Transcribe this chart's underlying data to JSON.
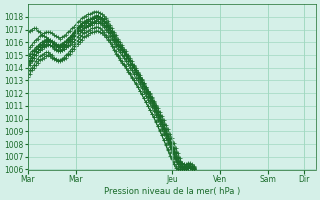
{
  "title": "",
  "xlabel": "Pression niveau de la mer( hPa )",
  "ylabel": "",
  "xlim": [
    0,
    144
  ],
  "ylim": [
    1006,
    1019
  ],
  "yticks": [
    1006,
    1007,
    1008,
    1009,
    1010,
    1011,
    1012,
    1013,
    1014,
    1015,
    1016,
    1017,
    1018
  ],
  "xtick_labels": [
    "Mar",
    "Mar",
    "Jeu",
    "Ven",
    "Sam",
    "Dir"
  ],
  "xtick_positions": [
    0,
    24,
    72,
    96,
    120,
    138
  ],
  "bg_color": "#d5f0e8",
  "line_color": "#1a6b2a",
  "grid_color": "#a0d8c0",
  "series": [
    [
      1014.0,
      1014.2,
      1014.5,
      1014.8,
      1015.0,
      1015.2,
      1015.4,
      1015.6,
      1015.7,
      1015.8,
      1015.9,
      1015.8,
      1015.7,
      1015.5,
      1015.4,
      1015.3,
      1015.3,
      1015.4,
      1015.5,
      1015.6,
      1015.7,
      1015.8,
      1015.9,
      1016.0,
      1016.2,
      1016.4,
      1016.6,
      1016.8,
      1017.0,
      1017.2,
      1017.3,
      1017.4,
      1017.5,
      1017.6,
      1017.7,
      1017.8,
      1017.8,
      1017.7,
      1017.5,
      1017.3,
      1017.0,
      1016.8,
      1016.5,
      1016.2,
      1016.0,
      1015.8,
      1015.6,
      1015.4,
      1015.2,
      1015.0,
      1014.8,
      1014.5,
      1014.2,
      1014.0,
      1013.8,
      1013.5,
      1013.3,
      1013.0,
      1012.8,
      1012.5,
      1012.2,
      1012.0,
      1011.7,
      1011.4,
      1011.1,
      1010.8,
      1010.5,
      1010.2,
      1009.9,
      1009.5,
      1009.2,
      1008.8,
      1008.5,
      1008.1,
      1007.7,
      1007.3,
      1006.9,
      1006.5,
      1006.4,
      1006.3,
      1006.2,
      1006.3,
      1006.2,
      1006.2
    ],
    [
      1014.2,
      1014.5,
      1014.8,
      1015.0,
      1015.3,
      1015.5,
      1015.6,
      1015.8,
      1015.9,
      1016.0,
      1016.1,
      1016.0,
      1016.0,
      1015.8,
      1015.7,
      1015.6,
      1015.5,
      1015.6,
      1015.7,
      1015.8,
      1016.0,
      1016.2,
      1016.4,
      1016.6,
      1016.8,
      1017.0,
      1017.2,
      1017.4,
      1017.5,
      1017.6,
      1017.7,
      1017.7,
      1017.8,
      1017.9,
      1018.0,
      1018.1,
      1018.0,
      1017.9,
      1017.7,
      1017.5,
      1017.2,
      1017.0,
      1016.7,
      1016.4,
      1016.1,
      1015.8,
      1015.6,
      1015.4,
      1015.2,
      1015.0,
      1014.8,
      1014.5,
      1014.2,
      1014.0,
      1013.7,
      1013.4,
      1013.1,
      1012.8,
      1012.5,
      1012.2,
      1011.9,
      1011.6,
      1011.3,
      1011.0,
      1010.6,
      1010.3,
      1010.0,
      1009.6,
      1009.2,
      1008.8,
      1008.4,
      1008.0,
      1007.6,
      1007.2,
      1006.8,
      1006.4,
      1006.2,
      1006.0,
      1006.0,
      1006.0,
      1006.1,
      1006.2,
      1006.1,
      1006.0
    ],
    [
      1014.5,
      1014.6,
      1014.8,
      1015.1,
      1015.3,
      1015.5,
      1015.7,
      1015.8,
      1015.9,
      1016.0,
      1016.1,
      1016.1,
      1016.0,
      1015.9,
      1015.8,
      1015.7,
      1015.7,
      1015.8,
      1015.9,
      1016.0,
      1016.2,
      1016.4,
      1016.5,
      1016.7,
      1016.9,
      1017.1,
      1017.3,
      1017.5,
      1017.6,
      1017.7,
      1017.8,
      1017.8,
      1017.9,
      1018.0,
      1018.1,
      1018.1,
      1018.0,
      1017.9,
      1017.8,
      1017.6,
      1017.3,
      1017.1,
      1016.8,
      1016.5,
      1016.2,
      1016.0,
      1015.7,
      1015.5,
      1015.3,
      1015.0,
      1014.8,
      1014.5,
      1014.2,
      1014.0,
      1013.8,
      1013.5,
      1013.2,
      1012.9,
      1012.6,
      1012.3,
      1012.0,
      1011.7,
      1011.4,
      1011.1,
      1010.8,
      1010.4,
      1010.1,
      1009.7,
      1009.3,
      1009.0,
      1008.6,
      1008.2,
      1007.8,
      1007.4,
      1007.0,
      1006.7,
      1006.5,
      1006.3,
      1006.2,
      1006.2,
      1006.3,
      1006.3,
      1006.2,
      1006.1
    ],
    [
      1013.5,
      1013.8,
      1014.0,
      1014.2,
      1014.5,
      1014.7,
      1014.9,
      1015.0,
      1015.1,
      1015.2,
      1015.2,
      1015.1,
      1015.0,
      1014.8,
      1014.7,
      1014.6,
      1014.6,
      1014.7,
      1014.8,
      1015.0,
      1015.1,
      1015.3,
      1015.5,
      1015.7,
      1015.9,
      1016.1,
      1016.3,
      1016.5,
      1016.7,
      1016.8,
      1016.9,
      1017.0,
      1017.1,
      1017.1,
      1017.2,
      1017.2,
      1017.1,
      1017.0,
      1016.8,
      1016.6,
      1016.4,
      1016.2,
      1015.9,
      1015.6,
      1015.3,
      1015.0,
      1014.8,
      1014.5,
      1014.3,
      1014.1,
      1013.8,
      1013.6,
      1013.3,
      1013.0,
      1012.8,
      1012.5,
      1012.2,
      1011.9,
      1011.6,
      1011.3,
      1011.0,
      1010.7,
      1010.4,
      1010.1,
      1009.7,
      1009.4,
      1009.0,
      1008.7,
      1008.3,
      1007.9,
      1007.5,
      1007.1,
      1006.8,
      1006.4,
      1006.1,
      1006.0,
      1006.0,
      1006.0,
      1006.0,
      1006.0,
      1006.1,
      1006.2,
      1006.1,
      1006.0
    ],
    [
      1014.8,
      1014.9,
      1015.1,
      1015.3,
      1015.5,
      1015.7,
      1015.8,
      1016.0,
      1016.1,
      1016.2,
      1016.2,
      1016.1,
      1016.0,
      1015.9,
      1015.8,
      1015.7,
      1015.7,
      1015.8,
      1015.9,
      1016.0,
      1016.2,
      1016.3,
      1016.5,
      1016.7,
      1016.9,
      1017.1,
      1017.3,
      1017.4,
      1017.5,
      1017.6,
      1017.7,
      1017.8,
      1017.8,
      1017.9,
      1017.9,
      1018.0,
      1017.9,
      1017.8,
      1017.7,
      1017.5,
      1017.3,
      1017.0,
      1016.8,
      1016.5,
      1016.2,
      1016.0,
      1015.7,
      1015.5,
      1015.2,
      1015.0,
      1014.8,
      1014.5,
      1014.2,
      1014.0,
      1013.7,
      1013.5,
      1013.2,
      1012.9,
      1012.6,
      1012.3,
      1012.0,
      1011.7,
      1011.4,
      1011.0,
      1010.7,
      1010.3,
      1010.0,
      1009.6,
      1009.2,
      1008.9,
      1008.5,
      1008.1,
      1007.7,
      1007.4,
      1007.0,
      1006.6,
      1006.3,
      1006.2,
      1006.2,
      1006.2,
      1006.3,
      1006.3,
      1006.2,
      1006.1
    ],
    [
      1014.3,
      1014.4,
      1014.6,
      1014.8,
      1015.0,
      1015.2,
      1015.4,
      1015.5,
      1015.6,
      1015.7,
      1015.8,
      1015.8,
      1015.7,
      1015.6,
      1015.5,
      1015.4,
      1015.3,
      1015.4,
      1015.5,
      1015.6,
      1015.8,
      1016.0,
      1016.1,
      1016.3,
      1016.5,
      1016.7,
      1016.9,
      1017.0,
      1017.1,
      1017.2,
      1017.3,
      1017.4,
      1017.4,
      1017.5,
      1017.5,
      1017.5,
      1017.5,
      1017.4,
      1017.2,
      1017.0,
      1016.8,
      1016.5,
      1016.3,
      1016.0,
      1015.7,
      1015.5,
      1015.2,
      1015.0,
      1014.8,
      1014.5,
      1014.3,
      1014.0,
      1013.8,
      1013.5,
      1013.2,
      1013.0,
      1012.7,
      1012.4,
      1012.1,
      1011.8,
      1011.5,
      1011.2,
      1010.9,
      1010.6,
      1010.3,
      1009.9,
      1009.6,
      1009.2,
      1008.8,
      1008.5,
      1008.1,
      1007.8,
      1007.4,
      1007.0,
      1006.7,
      1006.4,
      1006.2,
      1006.1,
      1006.1,
      1006.1,
      1006.2,
      1006.2,
      1006.1,
      1006.0
    ],
    [
      1015.0,
      1015.1,
      1015.3,
      1015.4,
      1015.6,
      1015.7,
      1015.9,
      1016.0,
      1016.1,
      1016.2,
      1016.3,
      1016.2,
      1016.1,
      1016.0,
      1015.9,
      1015.8,
      1015.8,
      1015.9,
      1016.0,
      1016.1,
      1016.3,
      1016.4,
      1016.6,
      1016.8,
      1017.0,
      1017.2,
      1017.3,
      1017.5,
      1017.6,
      1017.7,
      1017.8,
      1017.8,
      1017.9,
      1018.0,
      1018.0,
      1018.1,
      1018.0,
      1017.9,
      1017.8,
      1017.6,
      1017.4,
      1017.1,
      1016.9,
      1016.6,
      1016.3,
      1016.1,
      1015.8,
      1015.6,
      1015.3,
      1015.1,
      1014.9,
      1014.6,
      1014.3,
      1014.1,
      1013.8,
      1013.6,
      1013.3,
      1013.0,
      1012.7,
      1012.4,
      1012.1,
      1011.8,
      1011.5,
      1011.2,
      1010.9,
      1010.5,
      1010.2,
      1009.8,
      1009.5,
      1009.1,
      1008.7,
      1008.4,
      1008.0,
      1007.6,
      1007.3,
      1006.9,
      1006.6,
      1006.4,
      1006.3,
      1006.3,
      1006.4,
      1006.4,
      1006.3,
      1006.2
    ],
    [
      1013.3,
      1013.5,
      1013.8,
      1014.0,
      1014.2,
      1014.4,
      1014.6,
      1014.7,
      1014.8,
      1014.9,
      1015.0,
      1014.9,
      1014.8,
      1014.7,
      1014.6,
      1014.5,
      1014.5,
      1014.6,
      1014.7,
      1014.8,
      1015.0,
      1015.1,
      1015.3,
      1015.5,
      1015.7,
      1015.9,
      1016.0,
      1016.2,
      1016.4,
      1016.5,
      1016.6,
      1016.7,
      1016.8,
      1016.8,
      1016.9,
      1016.9,
      1016.8,
      1016.7,
      1016.6,
      1016.4,
      1016.2,
      1016.0,
      1015.7,
      1015.4,
      1015.1,
      1014.9,
      1014.6,
      1014.4,
      1014.2,
      1014.0,
      1013.7,
      1013.5,
      1013.2,
      1013.0,
      1012.7,
      1012.5,
      1012.2,
      1011.9,
      1011.6,
      1011.3,
      1011.0,
      1010.7,
      1010.4,
      1010.1,
      1009.8,
      1009.4,
      1009.1,
      1008.7,
      1008.3,
      1008.0,
      1007.6,
      1007.3,
      1006.9,
      1006.6,
      1006.3,
      1006.1,
      1006.0,
      1006.0,
      1006.0,
      1006.0,
      1006.1,
      1006.1,
      1006.0,
      1006.0
    ],
    [
      1015.5,
      1015.6,
      1015.8,
      1016.0,
      1016.2,
      1016.3,
      1016.5,
      1016.6,
      1016.7,
      1016.8,
      1016.8,
      1016.8,
      1016.7,
      1016.6,
      1016.5,
      1016.4,
      1016.3,
      1016.4,
      1016.5,
      1016.6,
      1016.8,
      1016.9,
      1017.1,
      1017.2,
      1017.4,
      1017.6,
      1017.7,
      1017.9,
      1018.0,
      1018.1,
      1018.2,
      1018.2,
      1018.3,
      1018.4,
      1018.4,
      1018.4,
      1018.3,
      1018.2,
      1018.1,
      1017.9,
      1017.7,
      1017.4,
      1017.1,
      1016.8,
      1016.6,
      1016.3,
      1016.0,
      1015.8,
      1015.5,
      1015.3,
      1015.0,
      1014.8,
      1014.5,
      1014.2,
      1014.0,
      1013.7,
      1013.4,
      1013.1,
      1012.8,
      1012.5,
      1012.2,
      1011.9,
      1011.6,
      1011.3,
      1011.0,
      1010.6,
      1010.3,
      1009.9,
      1009.6,
      1009.2,
      1008.8,
      1008.5,
      1008.1,
      1007.7,
      1007.4,
      1007.0,
      1006.7,
      1006.5,
      1006.4,
      1006.4,
      1006.5,
      1006.5,
      1006.4,
      1006.3
    ],
    [
      1016.8,
      1016.9,
      1017.0,
      1017.1,
      1017.1,
      1016.9,
      1016.8,
      1016.6,
      1016.5,
      1016.4,
      1016.3,
      1016.2,
      1016.0,
      1015.9,
      1015.8,
      1015.7,
      1015.6,
      1015.6,
      1015.7,
      1015.8,
      1016.0,
      1016.1,
      1016.3,
      1016.5,
      1016.7,
      1016.9,
      1017.0,
      1017.2,
      1017.3,
      1017.4,
      1017.5,
      1017.5,
      1017.6,
      1017.6,
      1017.7,
      1017.7,
      1017.6,
      1017.5,
      1017.4,
      1017.2,
      1017.0,
      1016.7,
      1016.5,
      1016.2,
      1015.9,
      1015.7,
      1015.4,
      1015.2,
      1014.9,
      1014.7,
      1014.5,
      1014.2,
      1014.0,
      1013.7,
      1013.5,
      1013.2,
      1012.9,
      1012.6,
      1012.3,
      1012.0,
      1011.7,
      1011.4,
      1011.1,
      1010.8,
      1010.5,
      1010.1,
      1009.8,
      1009.4,
      1009.0,
      1008.7,
      1008.3,
      1008.0,
      1007.6,
      1007.3,
      1006.9,
      1006.6,
      1006.4,
      1006.3,
      1006.2,
      1006.2,
      1006.3,
      1006.3,
      1006.2,
      1006.1
    ]
  ]
}
